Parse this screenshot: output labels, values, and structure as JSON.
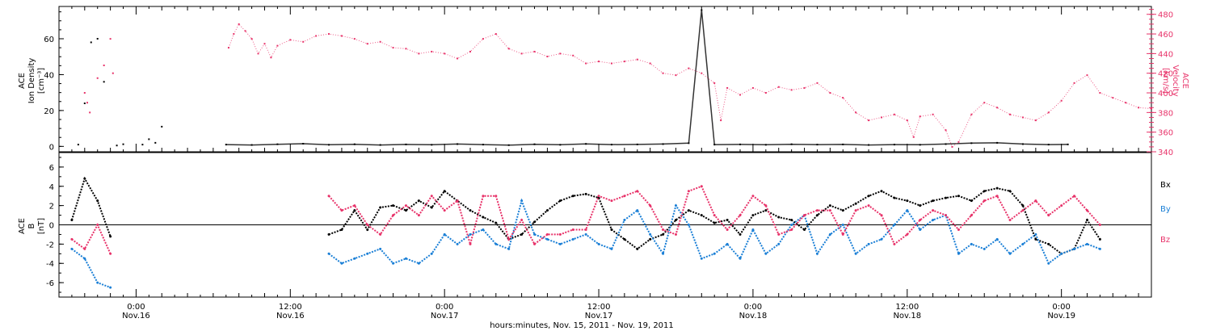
{
  "colors": {
    "density": "#000000",
    "velocity": "#e8336a",
    "bx": "#000000",
    "by": "#1a7fd6",
    "bz": "#e8336a",
    "axis": "#000000"
  },
  "chart_data": [
    {
      "type": "scatter",
      "panel": "top",
      "ylabel_left": [
        "ACE",
        "Ion Density",
        "[cm⁻³]"
      ],
      "ylabel_right": [
        "ACE",
        "Velocity",
        "[km/s]"
      ],
      "ylim_left": [
        -3,
        78
      ],
      "yticks_left": [
        0,
        20,
        40,
        60
      ],
      "ylim_right": [
        340,
        488
      ],
      "yticks_right": [
        340,
        360,
        380,
        400,
        420,
        440,
        460,
        480
      ],
      "xlim_hours": [
        -6,
        79
      ],
      "series": [
        {
          "axis": "left",
          "color_key": "density",
          "points": [
            [
              -4.5,
              1.0
            ],
            [
              -4,
              24
            ],
            [
              -3.5,
              58
            ],
            [
              -3,
              60
            ],
            [
              -2.5,
              36
            ],
            [
              -1.5,
              0.5
            ],
            [
              -1,
              1.2
            ],
            [
              0.5,
              1
            ],
            [
              1,
              4
            ],
            [
              1.5,
              2
            ],
            [
              2,
              11
            ],
            [
              7,
              1
            ],
            [
              9,
              0.8
            ],
            [
              11,
              1.2
            ],
            [
              13,
              1.5
            ],
            [
              15,
              0.9
            ],
            [
              17,
              1.2
            ],
            [
              19,
              0.8
            ],
            [
              21,
              1.1
            ],
            [
              23,
              0.9
            ],
            [
              25,
              1.3
            ],
            [
              27,
              1.0
            ],
            [
              29,
              0.7
            ],
            [
              31,
              1.2
            ],
            [
              33,
              0.9
            ],
            [
              35,
              1.4
            ],
            [
              37,
              1.0
            ],
            [
              39,
              1.1
            ],
            [
              41,
              1.3
            ],
            [
              43,
              1.8
            ],
            [
              45,
              1.0
            ],
            [
              47,
              1.1
            ],
            [
              49,
              0.9
            ],
            [
              51,
              1.2
            ],
            [
              53,
              1.0
            ],
            [
              55,
              1.1
            ],
            [
              57,
              0.8
            ],
            [
              59,
              1.0
            ],
            [
              61,
              0.9
            ],
            [
              63,
              1.3
            ],
            [
              65,
              1.8
            ],
            [
              67,
              2.0
            ],
            [
              69,
              1.3
            ],
            [
              71,
              1.0
            ],
            [
              72.5,
              1.1
            ],
            [
              44,
              76
            ]
          ]
        },
        {
          "axis": "right",
          "color_key": "velocity",
          "points": [
            [
              -4,
              400
            ],
            [
              -3.8,
              390
            ],
            [
              -3.6,
              380
            ],
            [
              -3,
              415
            ],
            [
              -2.5,
              428
            ],
            [
              -2,
              455
            ],
            [
              -1.8,
              420
            ],
            [
              7.2,
              446
            ],
            [
              7.6,
              460
            ],
            [
              8,
              470
            ],
            [
              8.5,
              463
            ],
            [
              9,
              455
            ],
            [
              9.5,
              440
            ],
            [
              10,
              450
            ],
            [
              10.5,
              436
            ],
            [
              11,
              448
            ],
            [
              12,
              454
            ],
            [
              13,
              452
            ],
            [
              14,
              458
            ],
            [
              15,
              460
            ],
            [
              16,
              458
            ],
            [
              17,
              455
            ],
            [
              18,
              450
            ],
            [
              19,
              452
            ],
            [
              20,
              446
            ],
            [
              21,
              445
            ],
            [
              22,
              440
            ],
            [
              23,
              442
            ],
            [
              24,
              440
            ],
            [
              25,
              435
            ],
            [
              26,
              442
            ],
            [
              27,
              455
            ],
            [
              28,
              460
            ],
            [
              29,
              445
            ],
            [
              30,
              440
            ],
            [
              31,
              442
            ],
            [
              32,
              437
            ],
            [
              33,
              440
            ],
            [
              34,
              438
            ],
            [
              35,
              430
            ],
            [
              36,
              432
            ],
            [
              37,
              430
            ],
            [
              38,
              432
            ],
            [
              39,
              434
            ],
            [
              40,
              430
            ],
            [
              41,
              420
            ],
            [
              42,
              418
            ],
            [
              43,
              425
            ],
            [
              44,
              420
            ],
            [
              45,
              410
            ],
            [
              46,
              405
            ],
            [
              47,
              398
            ],
            [
              48,
              405
            ],
            [
              49,
              400
            ],
            [
              50,
              406
            ],
            [
              51,
              403
            ],
            [
              52,
              405
            ],
            [
              53,
              410
            ],
            [
              54,
              400
            ],
            [
              55,
              395
            ],
            [
              56,
              380
            ],
            [
              57,
              372
            ],
            [
              58,
              375
            ],
            [
              59,
              378
            ],
            [
              60,
              372
            ],
            [
              61,
              376
            ],
            [
              62,
              378
            ],
            [
              63,
              362
            ],
            [
              64,
              350
            ],
            [
              65,
              378
            ],
            [
              66,
              390
            ],
            [
              67,
              385
            ],
            [
              68,
              378
            ],
            [
              69,
              375
            ],
            [
              70,
              372
            ],
            [
              71,
              380
            ],
            [
              72,
              392
            ],
            [
              73,
              410
            ],
            [
              74,
              418
            ],
            [
              75,
              400
            ],
            [
              76,
              395
            ],
            [
              77,
              390
            ],
            [
              78,
              385
            ],
            [
              79,
              384
            ],
            [
              45.5,
              372
            ],
            [
              60.5,
              355
            ],
            [
              63.5,
              345
            ]
          ]
        }
      ]
    },
    {
      "type": "line",
      "panel": "bottom",
      "ylabel_left": [
        "ACE",
        "B",
        "[nT]"
      ],
      "ylim": [
        -7.5,
        7.5
      ],
      "yticks": [
        -6,
        -4,
        -2,
        0,
        2,
        4,
        6
      ],
      "xlim_hours": [
        -6,
        79
      ],
      "legend": [
        "Bx",
        "By",
        "Bz"
      ],
      "legend_position": "right",
      "x": [
        -6,
        -5,
        -4,
        -3,
        -2,
        -1,
        0,
        1,
        2,
        3,
        4,
        5,
        6,
        7,
        8,
        9,
        10,
        11,
        12,
        13,
        14,
        15,
        16,
        17,
        18,
        19,
        20,
        21,
        22,
        23,
        24,
        25,
        26,
        27,
        28,
        29,
        30,
        31,
        32,
        33,
        34,
        35,
        36,
        37,
        38,
        39,
        40,
        41,
        42,
        43,
        44,
        45,
        46,
        47,
        48,
        49,
        50,
        51,
        52,
        53,
        54,
        55,
        56,
        57,
        58,
        59,
        60,
        61,
        62,
        63,
        64,
        65,
        66,
        67,
        68,
        69,
        70,
        71,
        72,
        73,
        74,
        75,
        76,
        77,
        78,
        79
      ],
      "series": [
        {
          "name": "Bx",
          "color_key": "bx",
          "values": [
            null,
            0.5,
            4.8,
            2.5,
            -1.2,
            null,
            null,
            null,
            null,
            null,
            null,
            null,
            null,
            null,
            null,
            null,
            null,
            null,
            null,
            null,
            null,
            -1.0,
            -0.5,
            1.5,
            -0.5,
            1.8,
            2.0,
            1.5,
            2.5,
            1.8,
            3.5,
            2.5,
            1.5,
            0.8,
            0.2,
            -1.5,
            -1.0,
            0.3,
            1.5,
            2.5,
            3.0,
            3.2,
            2.8,
            -0.5,
            -1.5,
            -2.5,
            -1.5,
            -1.0,
            0.5,
            1.5,
            1.0,
            0.2,
            0.5,
            -1.0,
            1.0,
            1.5,
            0.8,
            0.5,
            -0.5,
            1.0,
            2.0,
            1.5,
            2.2,
            3.0,
            3.5,
            2.8,
            2.5,
            2.0,
            2.5,
            2.8,
            3.0,
            2.5,
            3.5,
            3.8,
            3.5,
            2.0,
            -1.5,
            -2.0,
            -3.0,
            -2.5,
            0.5,
            -1.5,
            null,
            null,
            null,
            null
          ]
        },
        {
          "name": "By",
          "color_key": "by",
          "values": [
            null,
            -2.5,
            -3.5,
            -6.0,
            -6.5,
            null,
            null,
            null,
            null,
            null,
            null,
            null,
            null,
            null,
            null,
            null,
            null,
            null,
            null,
            null,
            null,
            -3.0,
            -4.0,
            -3.5,
            -3.0,
            -2.5,
            -4.0,
            -3.5,
            -4.0,
            -3.0,
            -1.0,
            -2.0,
            -1.0,
            -0.5,
            -2.0,
            -2.5,
            2.5,
            -1.0,
            -1.5,
            -2.0,
            -1.5,
            -1.0,
            -2.0,
            -2.5,
            0.5,
            1.5,
            -1.0,
            -3.0,
            2.0,
            0.0,
            -3.5,
            -3.0,
            -2.0,
            -3.5,
            -0.5,
            -3.0,
            -2.0,
            0.0,
            1.0,
            -3.0,
            -1.0,
            0.0,
            -3.0,
            -2.0,
            -1.5,
            0.0,
            1.5,
            -0.5,
            0.5,
            1.0,
            -3.0,
            -2.0,
            -2.5,
            -1.5,
            -3.0,
            -2.0,
            -1.0,
            -4.0,
            -3.0,
            -2.5,
            -2.0,
            -2.5,
            null,
            null,
            null,
            null
          ]
        },
        {
          "name": "Bz",
          "color_key": "bz",
          "values": [
            null,
            -1.5,
            -2.5,
            0.0,
            -3.0,
            null,
            null,
            null,
            null,
            null,
            null,
            null,
            null,
            null,
            null,
            null,
            null,
            null,
            null,
            null,
            null,
            3.0,
            1.5,
            2.0,
            0.0,
            -1.0,
            1.0,
            2.0,
            1.0,
            3.0,
            1.5,
            2.5,
            -2.0,
            3.0,
            3.0,
            -1.5,
            0.5,
            -2.0,
            -1.0,
            -1.0,
            -0.5,
            -0.5,
            3.0,
            2.5,
            3.0,
            3.5,
            2.0,
            -0.5,
            -1.0,
            3.5,
            4.0,
            1.0,
            -0.5,
            1.0,
            3.0,
            2.0,
            -1.0,
            -0.5,
            1.0,
            1.5,
            1.5,
            -1.0,
            1.5,
            2.0,
            1.0,
            -2.0,
            -1.0,
            0.5,
            1.5,
            1.0,
            -0.5,
            1.0,
            2.5,
            3.0,
            0.5,
            1.5,
            2.5,
            1.0,
            2.0,
            3.0,
            1.5,
            0.0,
            null,
            null,
            null,
            null
          ]
        }
      ]
    }
  ],
  "x_axis": {
    "ticks": [
      {
        "hours": 0,
        "time": "0:00",
        "date": "Nov.16"
      },
      {
        "hours": 12,
        "time": "12:00",
        "date": "Nov.16"
      },
      {
        "hours": 24,
        "time": "0:00",
        "date": "Nov.17"
      },
      {
        "hours": 36,
        "time": "12:00",
        "date": "Nov.17"
      },
      {
        "hours": 48,
        "time": "0:00",
        "date": "Nov.18"
      },
      {
        "hours": 60,
        "time": "12:00",
        "date": "Nov.18"
      },
      {
        "hours": 72,
        "time": "0:00",
        "date": "Nov.19"
      }
    ],
    "xlabel": "hours:minutes, Nov. 15, 2011 - Nov. 19, 2011"
  }
}
